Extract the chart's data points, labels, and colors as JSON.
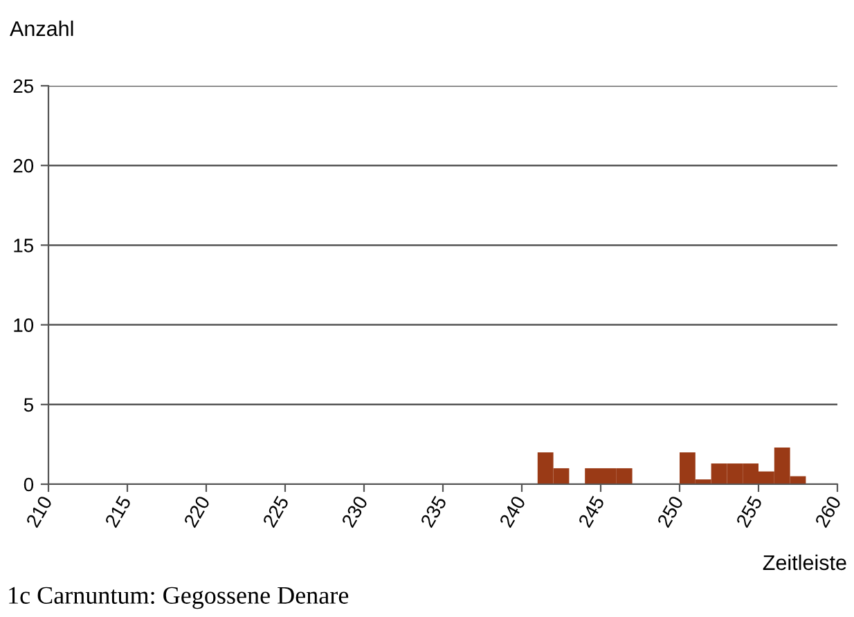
{
  "chart_data": {
    "type": "histogram",
    "title": "1c Carnuntum: Gegossene Denare",
    "xlabel": "Zeitleiste",
    "ylabel": "Anzahl",
    "bins": [
      241,
      242,
      243,
      244,
      245,
      246,
      247,
      248,
      249,
      250,
      251,
      252,
      253,
      254,
      255,
      256,
      257,
      258
    ],
    "values": [
      2,
      1,
      0,
      1,
      1,
      1,
      0,
      0,
      0,
      2,
      0.3,
      1.3,
      1.3,
      1.3,
      0.8,
      2.3,
      0.5
    ],
    "color": "#9a3a16",
    "xlim": [
      210,
      260
    ],
    "xticks": [
      210,
      215,
      220,
      225,
      230,
      235,
      240,
      245,
      250,
      255,
      260
    ],
    "ylim": [
      0,
      25
    ],
    "yticks": [
      0,
      5,
      10,
      15,
      20,
      25
    ],
    "grid": "y",
    "legend": false
  }
}
